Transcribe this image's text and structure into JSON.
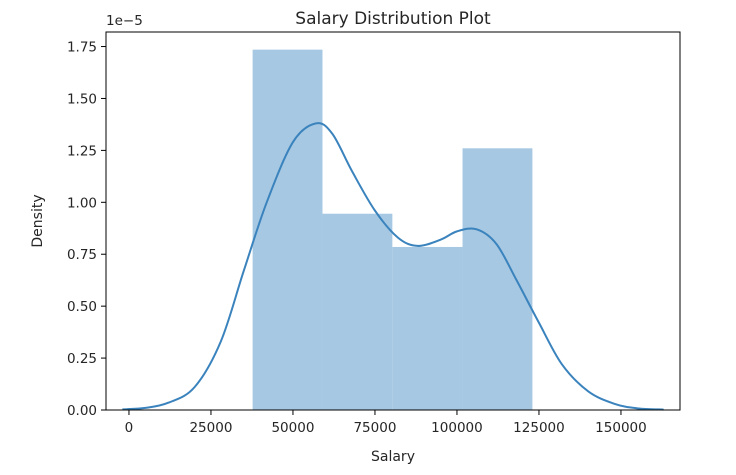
{
  "chart_data": {
    "type": "histogram",
    "title": "Salary Distribution Plot",
    "xlabel": "Salary",
    "ylabel": "Density",
    "y_scale_label": "1e−5",
    "xlim": [
      -7000,
      168000
    ],
    "ylim": [
      0,
      1.82
    ],
    "x_ticks": [
      0,
      25000,
      50000,
      75000,
      100000,
      125000,
      150000
    ],
    "x_tick_labels": [
      "0",
      "25000",
      "50000",
      "75000",
      "100000",
      "125000",
      "150000"
    ],
    "y_ticks": [
      0,
      0.25,
      0.5,
      0.75,
      1.0,
      1.25,
      1.5,
      1.75
    ],
    "y_tick_labels": [
      "0.00",
      "0.25",
      "0.50",
      "0.75",
      "1.00",
      "1.25",
      "1.50",
      "1.75"
    ],
    "bins": [
      {
        "x0": 37700,
        "x1": 59000,
        "density": 1.735
      },
      {
        "x0": 59000,
        "x1": 80300,
        "density": 0.945
      },
      {
        "x0": 80300,
        "x1": 101700,
        "density": 0.785
      },
      {
        "x0": 101700,
        "x1": 123000,
        "density": 1.26
      }
    ],
    "kde": {
      "x": [
        -2000,
        5000,
        12000,
        20000,
        28000,
        35000,
        42000,
        50000,
        57000,
        62000,
        68000,
        75000,
        82000,
        88000,
        95000,
        100000,
        106000,
        112000,
        118000,
        125000,
        132000,
        140000,
        148000,
        155000,
        163000
      ],
      "y": [
        0.003,
        0.01,
        0.035,
        0.11,
        0.33,
        0.67,
        1.0,
        1.29,
        1.38,
        1.33,
        1.15,
        0.96,
        0.83,
        0.79,
        0.82,
        0.86,
        0.87,
        0.8,
        0.63,
        0.42,
        0.22,
        0.09,
        0.03,
        0.008,
        0.002
      ]
    },
    "bar_color": "#a6c8e3",
    "line_color": "#3a83bd",
    "grid": false,
    "legend": "none"
  }
}
